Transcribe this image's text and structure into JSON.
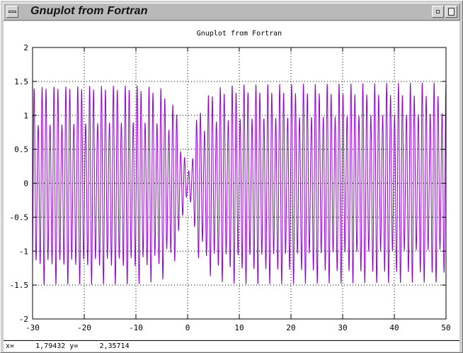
{
  "window": {
    "title": "Gnuplot from Fortran"
  },
  "status": {
    "text": "x=     1,79432 y=     2,35714"
  },
  "chart_data": {
    "type": "line",
    "title": "Gnuplot from Fortran",
    "xlabel": "",
    "ylabel": "",
    "xlim": [
      -30,
      50
    ],
    "ylim": [
      -2,
      2
    ],
    "xticks": [
      -30,
      -20,
      -10,
      0,
      10,
      20,
      30,
      40,
      50
    ],
    "yticks": [
      -2,
      -1.5,
      -1,
      -0.5,
      0,
      0.5,
      1,
      1.5,
      2
    ],
    "grid": true,
    "legend": "none",
    "series": [
      {
        "color": "#9400d3",
        "description": "rapidly oscillating signal, amplitude about 1.5, dipping near 0 around x = 0",
        "x": [
          -30,
          -25,
          -20,
          -15,
          -10,
          -5,
          -2,
          0,
          2,
          5,
          10,
          15,
          20,
          30,
          40,
          50
        ],
        "y_envelope": [
          1.5,
          1.5,
          1.5,
          1.5,
          1.5,
          1.45,
          1.1,
          0.1,
          1.1,
          1.45,
          1.5,
          1.5,
          1.5,
          1.5,
          1.5,
          1.5
        ]
      }
    ]
  }
}
